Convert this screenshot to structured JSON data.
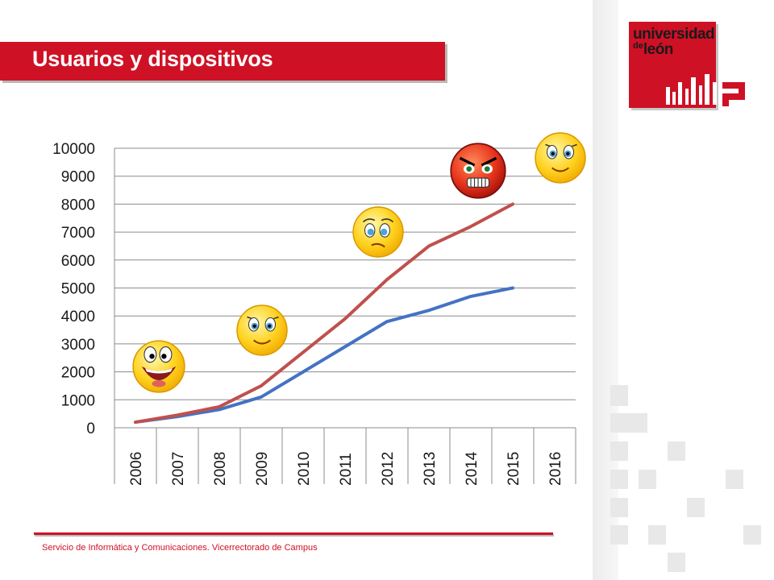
{
  "title": "Usuarios y dispositivos",
  "logo": {
    "line1": "universidad",
    "line2_small": "de",
    "line2": "león"
  },
  "footer": "Servicio de Informática y Comunicaciones. Vicerrectorado de Campus",
  "colors": {
    "accent": "#cf1125",
    "series1": "#4472c4",
    "series2": "#c0504d"
  },
  "emojis": [
    {
      "name": "laughing-emoji-icon",
      "year": 2006
    },
    {
      "name": "smiling-emoji-icon",
      "year": 2009
    },
    {
      "name": "worried-emoji-icon",
      "year": 2012
    },
    {
      "name": "angry-emoji-icon",
      "year": 2014
    },
    {
      "name": "smiling-emoji-icon",
      "year": 2016
    }
  ],
  "chart_data": {
    "type": "line",
    "categories": [
      "2006",
      "2007",
      "2008",
      "2009",
      "2010",
      "2011",
      "2012",
      "2013",
      "2014",
      "2015",
      "2016"
    ],
    "ylim": [
      0,
      10000
    ],
    "yticks": [
      "0",
      "1000",
      "2000",
      "3000",
      "4000",
      "5000",
      "6000",
      "7000",
      "8000",
      "9000",
      "10000"
    ],
    "grid": true,
    "legend": "none",
    "series": [
      {
        "color": "#4472c4",
        "values": [
          200,
          400,
          650,
          1100,
          2000,
          2900,
          3800,
          4200,
          4700,
          5000,
          null
        ]
      },
      {
        "color": "#c0504d",
        "values": [
          200,
          450,
          750,
          1500,
          2700,
          3900,
          5300,
          6500,
          7200,
          8000,
          null
        ]
      }
    ]
  }
}
